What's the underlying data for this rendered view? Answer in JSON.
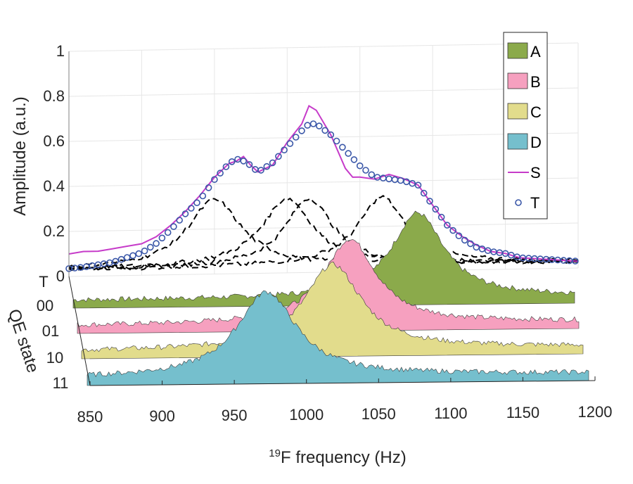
{
  "chart_data": {
    "type": "3d-waterfall",
    "x_label_pre": "",
    "x_label_sup": "19",
    "x_label_main": "F frequency (Hz)",
    "y_label": "Amplitude (a.u.)",
    "z_label": "QE state",
    "x_ticks": [
      "850",
      "900",
      "950",
      "1000",
      "1050",
      "1100",
      "1150",
      "1200"
    ],
    "y_ticks": [
      "0",
      "0.2",
      "0.4",
      "0.6",
      "0.8",
      "1"
    ],
    "z_ticks": [
      "T",
      "00",
      "01",
      "10",
      "11"
    ],
    "xlim": [
      850,
      1200
    ],
    "ylim": [
      0,
      1
    ],
    "legend": [
      {
        "key": "A",
        "label": "A",
        "kind": "patch",
        "color": "#8BAA4B"
      },
      {
        "key": "B",
        "label": "B",
        "kind": "patch",
        "color": "#F6A0BF"
      },
      {
        "key": "C",
        "label": "C",
        "kind": "patch",
        "color": "#E2DC8C"
      },
      {
        "key": "D",
        "label": "D",
        "kind": "patch",
        "color": "#75BFCD"
      },
      {
        "key": "S",
        "label": "S",
        "kind": "line",
        "color": "#C63BC9"
      },
      {
        "key": "T",
        "label": "T",
        "kind": "marker",
        "color": "#3A57A8"
      }
    ],
    "peaks": {
      "A": {
        "center": 1090,
        "width": 22,
        "height": 0.5,
        "baseline": 0.045
      },
      "B": {
        "center": 1040,
        "width": 22,
        "height": 0.5,
        "baseline": 0.045
      },
      "C": {
        "center": 1025,
        "width": 24,
        "height": 0.5,
        "baseline": 0.045
      },
      "D": {
        "center": 975,
        "width": 25,
        "height": 0.5,
        "baseline": 0.045
      }
    },
    "series_T_points": [
      [
        850,
        0.035
      ],
      [
        860,
        0.04
      ],
      [
        870,
        0.05
      ],
      [
        880,
        0.06
      ],
      [
        890,
        0.08
      ],
      [
        900,
        0.1
      ],
      [
        910,
        0.14
      ],
      [
        920,
        0.2
      ],
      [
        930,
        0.27
      ],
      [
        940,
        0.33
      ],
      [
        950,
        0.42
      ],
      [
        960,
        0.49
      ],
      [
        965,
        0.51
      ],
      [
        970,
        0.5
      ],
      [
        975,
        0.48
      ],
      [
        980,
        0.45
      ],
      [
        990,
        0.49
      ],
      [
        1000,
        0.56
      ],
      [
        1010,
        0.63
      ],
      [
        1015,
        0.66
      ],
      [
        1020,
        0.66
      ],
      [
        1030,
        0.61
      ],
      [
        1040,
        0.54
      ],
      [
        1050,
        0.47
      ],
      [
        1060,
        0.42
      ],
      [
        1070,
        0.41
      ],
      [
        1080,
        0.4
      ],
      [
        1090,
        0.38
      ],
      [
        1100,
        0.29
      ],
      [
        1110,
        0.2
      ],
      [
        1120,
        0.14
      ],
      [
        1130,
        0.1
      ],
      [
        1140,
        0.08
      ],
      [
        1150,
        0.07
      ],
      [
        1160,
        0.05
      ],
      [
        1170,
        0.045
      ],
      [
        1180,
        0.04
      ],
      [
        1190,
        0.035
      ],
      [
        1200,
        0.03
      ]
    ],
    "series_S_points": [
      [
        850,
        0.1
      ],
      [
        860,
        0.11
      ],
      [
        870,
        0.11
      ],
      [
        880,
        0.12
      ],
      [
        890,
        0.13
      ],
      [
        900,
        0.14
      ],
      [
        910,
        0.17
      ],
      [
        920,
        0.22
      ],
      [
        930,
        0.28
      ],
      [
        940,
        0.35
      ],
      [
        950,
        0.43
      ],
      [
        960,
        0.49
      ],
      [
        965,
        0.5
      ],
      [
        970,
        0.52
      ],
      [
        975,
        0.48
      ],
      [
        980,
        0.45
      ],
      [
        990,
        0.48
      ],
      [
        1000,
        0.58
      ],
      [
        1010,
        0.66
      ],
      [
        1015,
        0.74
      ],
      [
        1020,
        0.72
      ],
      [
        1030,
        0.61
      ],
      [
        1040,
        0.46
      ],
      [
        1045,
        0.42
      ],
      [
        1050,
        0.42
      ],
      [
        1060,
        0.41
      ],
      [
        1070,
        0.43
      ],
      [
        1080,
        0.41
      ],
      [
        1090,
        0.38
      ],
      [
        1100,
        0.29
      ],
      [
        1110,
        0.2
      ],
      [
        1120,
        0.15
      ],
      [
        1130,
        0.11
      ],
      [
        1140,
        0.08
      ],
      [
        1150,
        0.07
      ],
      [
        1160,
        0.05
      ],
      [
        1170,
        0.045
      ],
      [
        1180,
        0.04
      ],
      [
        1190,
        0.035
      ],
      [
        1200,
        0.03
      ]
    ]
  }
}
